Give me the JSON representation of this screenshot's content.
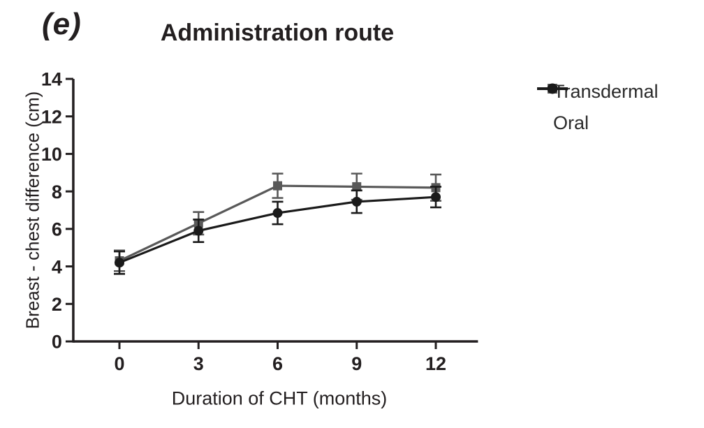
{
  "panel_label": "(e)",
  "title": "Administration route",
  "legend": {
    "position": "right",
    "items": [
      {
        "label": "Transdermal",
        "marker": "square",
        "color": "#595959"
      },
      {
        "label": "Oral",
        "marker": "circle",
        "color": "#1a1a1a"
      }
    ]
  },
  "chart_data": {
    "type": "line",
    "title": "Administration route",
    "xlabel": "Duration of CHT (months)",
    "ylabel": "Breast - chest difference (cm)",
    "x": [
      0,
      3,
      6,
      9,
      12
    ],
    "xticks": [
      0,
      3,
      6,
      9,
      12
    ],
    "yticks": [
      0,
      2,
      4,
      6,
      8,
      10,
      12,
      14
    ],
    "xlim": [
      -1.75,
      13.6
    ],
    "ylim": [
      0,
      14
    ],
    "grid": false,
    "error_bars": true,
    "legend_position": "right",
    "series": [
      {
        "name": "Transdermal",
        "marker": "square",
        "color": "#595959",
        "values": [
          4.3,
          6.3,
          8.3,
          8.25,
          8.2
        ],
        "errors": [
          0.55,
          0.6,
          0.65,
          0.7,
          0.7
        ]
      },
      {
        "name": "Oral",
        "marker": "circle",
        "color": "#1a1a1a",
        "values": [
          4.2,
          5.9,
          6.85,
          7.45,
          7.7
        ],
        "errors": [
          0.6,
          0.6,
          0.6,
          0.6,
          0.55
        ]
      }
    ]
  },
  "colors": {
    "axis": "#231f20",
    "text": "#231f20",
    "background": "#ffffff"
  }
}
